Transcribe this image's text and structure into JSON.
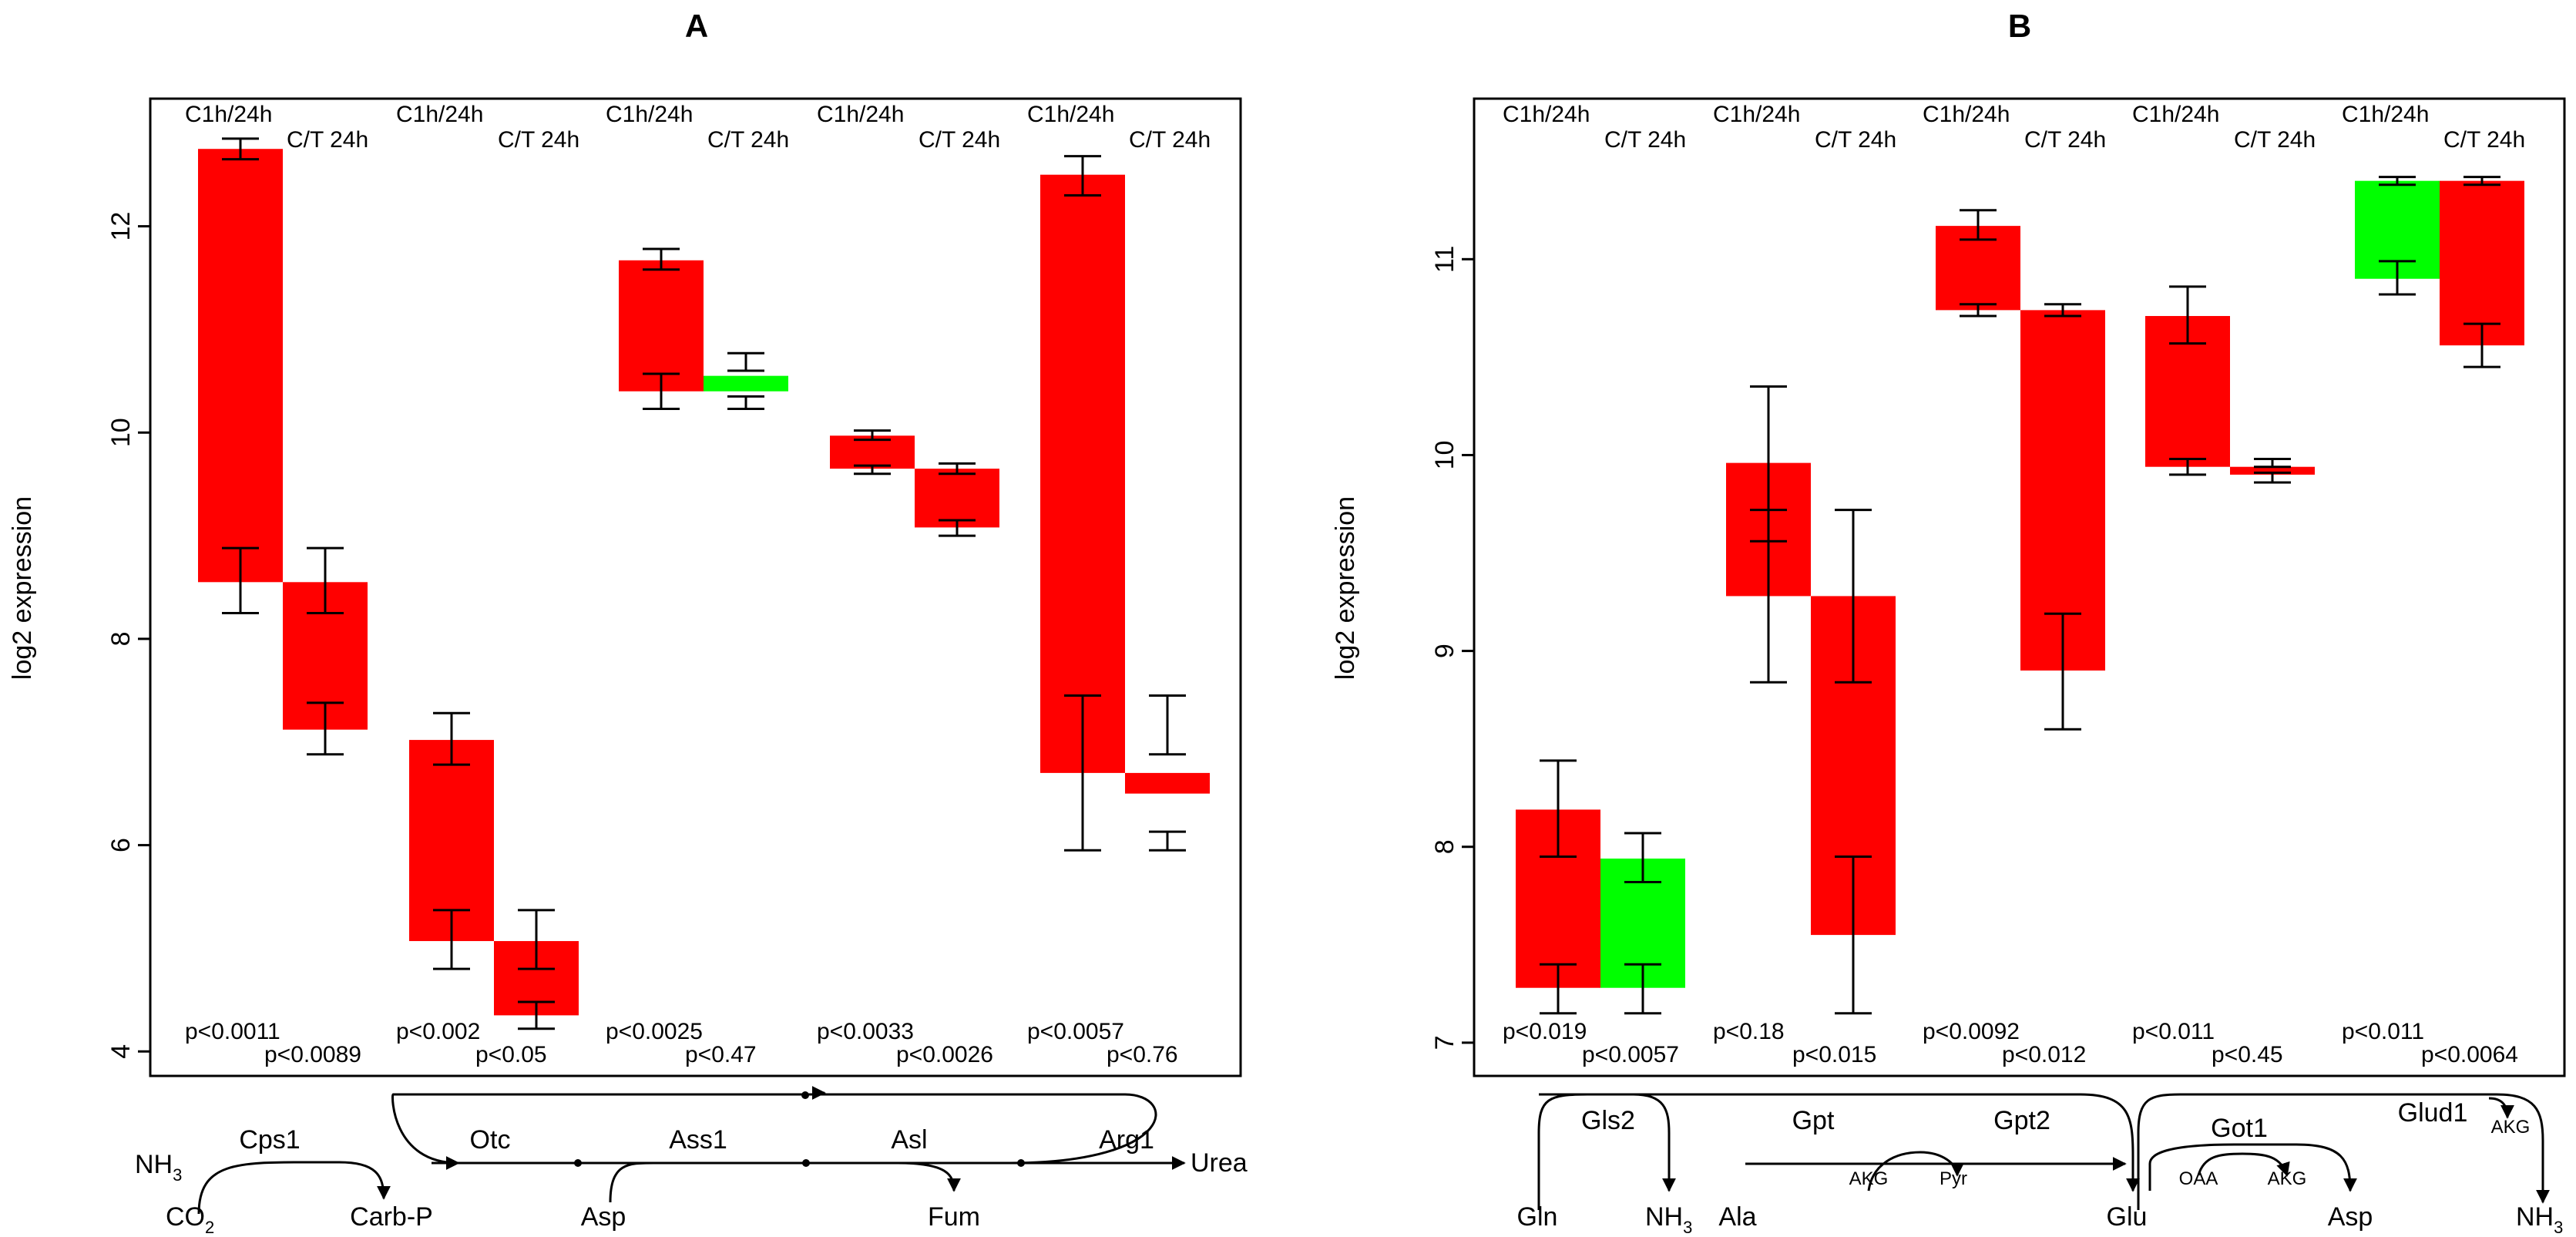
{
  "colors": {
    "up": "#ff0000",
    "down": "#00ff00",
    "frame": "#000000"
  },
  "chart_data": [
    {
      "type": "floating-bar",
      "panel_title": "A",
      "ylabel": "log2 expression",
      "ylim": [
        3.8,
        13.2
      ],
      "yticks": [
        4,
        6,
        8,
        10,
        12
      ],
      "top_labels": {
        "c1h": "C1h/24h",
        "ct": "C/T 24h"
      },
      "groups": [
        {
          "gene": "Cps1",
          "c1h": {
            "low": 8.55,
            "high": 12.75,
            "color": "up",
            "err_low": [
              8.25,
              8.88
            ],
            "err_high": [
              12.65,
              12.85
            ],
            "pvalue": "p<0.0011"
          },
          "ct": {
            "low": 7.12,
            "high": 8.55,
            "color": "up",
            "err_low": [
              6.88,
              7.38
            ],
            "err_high": [
              8.25,
              8.88
            ],
            "pvalue": "p<0.0089"
          }
        },
        {
          "gene": "Otc",
          "c1h": {
            "low": 5.07,
            "high": 7.02,
            "color": "up",
            "err_low": [
              4.8,
              5.37
            ],
            "err_high": [
              6.78,
              7.28
            ],
            "pvalue": "p<0.002"
          },
          "ct": {
            "low": 4.35,
            "high": 5.07,
            "color": "up",
            "err_low": [
              4.22,
              4.48
            ],
            "err_high": [
              4.8,
              5.37
            ],
            "pvalue": "p<0.05"
          }
        },
        {
          "gene": "Ass1",
          "c1h": {
            "low": 10.4,
            "high": 11.67,
            "color": "up",
            "err_low": [
              10.23,
              10.57
            ],
            "err_high": [
              11.58,
              11.78
            ],
            "pvalue": "p<0.0025"
          },
          "ct": {
            "low": 10.4,
            "high": 10.55,
            "color": "down",
            "err_low": [
              10.23,
              10.35
            ],
            "err_high": [
              10.6,
              10.77
            ],
            "pvalue": "p<0.47"
          }
        },
        {
          "gene": "Asl",
          "c1h": {
            "low": 9.65,
            "high": 9.97,
            "color": "up",
            "err_low": [
              9.6,
              9.68
            ],
            "err_high": [
              9.93,
              10.02
            ],
            "pvalue": "p<0.0033"
          },
          "ct": {
            "low": 9.08,
            "high": 9.65,
            "color": "up",
            "err_low": [
              9.0,
              9.15
            ],
            "err_high": [
              9.6,
              9.7
            ],
            "pvalue": "p<0.0026"
          }
        },
        {
          "gene": "Arg1",
          "c1h": {
            "low": 6.7,
            "high": 12.5,
            "color": "up",
            "err_low": [
              5.95,
              7.45
            ],
            "err_high": [
              12.3,
              12.68
            ],
            "pvalue": "p<0.0057"
          },
          "ct": {
            "low": 6.5,
            "high": 6.7,
            "color": "up",
            "err_low": [
              5.95,
              6.13
            ],
            "err_high": [
              6.88,
              7.45
            ],
            "pvalue": "p<0.76"
          }
        }
      ],
      "pathway": {
        "NH3": "NH",
        "NH3_sub": "3",
        "CO2": "CO",
        "CO2_sub": "2",
        "carbp": "Carb-P",
        "asp": "Asp",
        "fum": "Fum",
        "urea": "Urea",
        "cps1": "Cps1",
        "otc": "Otc",
        "ass1": "Ass1",
        "asl": "Asl",
        "arg1": "Arg1"
      }
    },
    {
      "type": "floating-bar",
      "panel_title": "B",
      "ylabel": "log2 expression",
      "ylim": [
        6.85,
        11.8
      ],
      "yticks": [
        7,
        8,
        9,
        10,
        11
      ],
      "top_labels": {
        "c1h": "C1h/24h",
        "ct": "C/T 24h"
      },
      "groups": [
        {
          "gene": "Gls2",
          "c1h": {
            "low": 7.28,
            "high": 8.19,
            "color": "up",
            "err_low": [
              7.15,
              7.4
            ],
            "err_high": [
              7.95,
              8.44
            ],
            "pvalue": "p<0.019"
          },
          "ct": {
            "low": 7.28,
            "high": 7.94,
            "color": "down",
            "err_low": [
              7.15,
              7.4
            ],
            "err_high": [
              7.82,
              8.07
            ],
            "pvalue": "p<0.0057"
          }
        },
        {
          "gene": "Gpt",
          "c1h": {
            "low": 9.28,
            "high": 9.96,
            "color": "up",
            "err_low": [
              8.84,
              9.72
            ],
            "err_high": [
              9.56,
              10.35
            ],
            "pvalue": "p<0.18"
          },
          "ct": {
            "low": 7.55,
            "high": 9.28,
            "color": "up",
            "err_low": [
              7.15,
              7.95
            ],
            "err_high": [
              8.84,
              9.72
            ],
            "pvalue": "p<0.015"
          }
        },
        {
          "gene": "Gpt2",
          "c1h": {
            "low": 10.74,
            "high": 11.17,
            "color": "up",
            "err_low": [
              10.71,
              10.77
            ],
            "err_high": [
              11.1,
              11.25
            ],
            "pvalue": "p<0.0092"
          },
          "ct": {
            "low": 8.9,
            "high": 10.74,
            "color": "up",
            "err_low": [
              8.6,
              9.19
            ],
            "err_high": [
              10.71,
              10.77
            ],
            "pvalue": "p<0.012"
          }
        },
        {
          "gene": "Got1",
          "c1h": {
            "low": 9.94,
            "high": 10.71,
            "color": "up",
            "err_low": [
              9.9,
              9.98
            ],
            "err_high": [
              10.57,
              10.86
            ],
            "pvalue": "p<0.011"
          },
          "ct": {
            "low": 9.9,
            "high": 9.94,
            "color": "up",
            "err_low": [
              9.86,
              9.91
            ],
            "err_high": [
              9.94,
              9.98
            ],
            "pvalue": "p<0.45"
          }
        },
        {
          "gene": "Glud1",
          "c1h": {
            "low": 10.9,
            "high": 11.4,
            "color": "down",
            "err_low": [
              10.82,
              10.99
            ],
            "err_high": [
              11.38,
              11.42
            ],
            "pvalue": "p<0.011"
          },
          "ct": {
            "low": 10.56,
            "high": 11.4,
            "color": "up",
            "err_low": [
              10.45,
              10.67
            ],
            "err_high": [
              11.38,
              11.42
            ],
            "pvalue": "p<0.0064"
          }
        }
      ],
      "pathway": {
        "gln": "Gln",
        "NH3": "NH",
        "NH3_sub": "3",
        "ala": "Ala",
        "glu": "Glu",
        "asp": "Asp",
        "gls2": "Gls2",
        "gpt": "Gpt",
        "gpt2": "Gpt2",
        "got1": "Got1",
        "glud1": "Glud1",
        "akg": "AKG",
        "pyr": "Pyr",
        "oaa": "OAA"
      }
    }
  ]
}
